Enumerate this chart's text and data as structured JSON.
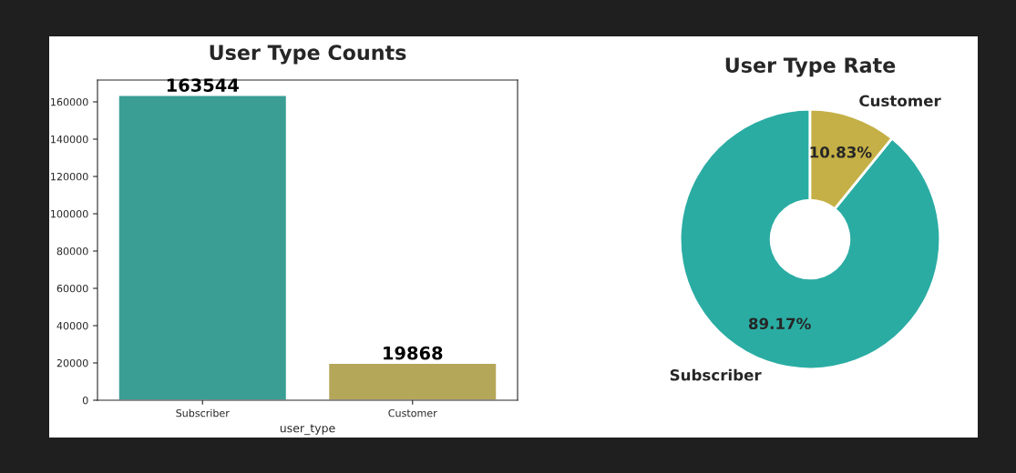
{
  "chart_data": [
    {
      "type": "bar",
      "title": "User Type Counts",
      "xlabel": "user_type",
      "categories": [
        "Subscriber",
        "Customer"
      ],
      "values": [
        163544,
        19868
      ],
      "colors": [
        "#3a9e94",
        "#b5a75a"
      ],
      "ylim": [
        0,
        171700
      ],
      "yticks": [
        0,
        20000,
        40000,
        60000,
        80000,
        100000,
        120000,
        140000,
        160000
      ],
      "data_labels": true,
      "grid": false,
      "legend": false
    },
    {
      "type": "donut",
      "title": "User Type Rate",
      "categories": [
        "Subscriber",
        "Customer"
      ],
      "values": [
        89.17,
        10.83
      ],
      "colors": [
        "#2aaca3",
        "#c4b046"
      ],
      "value_labels": [
        "89.17%",
        "10.83%"
      ]
    }
  ]
}
